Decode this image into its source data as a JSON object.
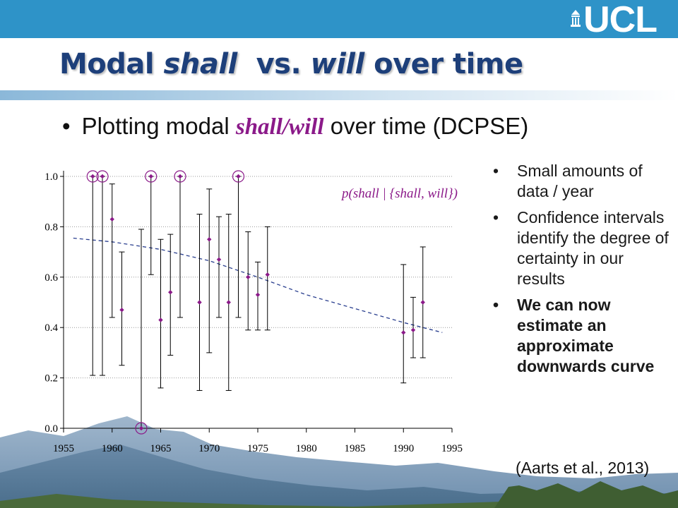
{
  "header": {
    "logo_text": "UCL",
    "title_part1": "Modal ",
    "title_em1": "shall",
    "title_part2": "  vs. ",
    "title_em2": "will",
    "title_part3": " over time"
  },
  "main_bullet": {
    "text_before": "Plotting modal ",
    "text_em": "shall/will",
    "text_after": " over time (DCPSE)"
  },
  "side_bullets": [
    {
      "text": "Small amounts of data / year",
      "bold": false
    },
    {
      "text": "Confidence intervals identify the degree of certainty in our results",
      "bold": false
    },
    {
      "text": "We can now estimate an approximate downwards curve",
      "bold": true
    }
  ],
  "citation": "(Aarts et al., 2013)",
  "colors": {
    "banner": "#2e93c8",
    "title": "#1d3f7a",
    "point": "#8b1a89",
    "curve": "#2a3f8f"
  },
  "chart_data": {
    "type": "scatter",
    "series_label": "p(shall | {shall, will})",
    "xlim": [
      1955,
      1995
    ],
    "ylim": [
      0,
      1
    ],
    "x_ticks": [
      "1955",
      "1960",
      "1965",
      "1970",
      "1975",
      "1980",
      "1985",
      "1990",
      "1995"
    ],
    "y_ticks": [
      "0.0",
      "0.2",
      "0.4",
      "0.6",
      "0.8",
      "1.0"
    ],
    "grid": "horizontal dotted",
    "points": [
      {
        "x": 1958,
        "y": 1.0,
        "lo": 0.21,
        "hi": 1.0,
        "circled": true
      },
      {
        "x": 1959,
        "y": 1.0,
        "lo": 0.21,
        "hi": 1.0,
        "circled": true
      },
      {
        "x": 1960,
        "y": 0.83,
        "lo": 0.44,
        "hi": 0.97,
        "circled": false
      },
      {
        "x": 1961,
        "y": 0.47,
        "lo": 0.25,
        "hi": 0.7,
        "circled": false
      },
      {
        "x": 1963,
        "y": 0.0,
        "lo": 0.0,
        "hi": 0.79,
        "circled": true
      },
      {
        "x": 1964,
        "y": 1.0,
        "lo": 0.61,
        "hi": 1.0,
        "circled": true
      },
      {
        "x": 1965,
        "y": 0.43,
        "lo": 0.16,
        "hi": 0.75,
        "circled": false
      },
      {
        "x": 1966,
        "y": 0.54,
        "lo": 0.29,
        "hi": 0.77,
        "circled": false
      },
      {
        "x": 1967,
        "y": 1.0,
        "lo": 0.44,
        "hi": 1.0,
        "circled": true
      },
      {
        "x": 1969,
        "y": 0.5,
        "lo": 0.15,
        "hi": 0.85,
        "circled": false
      },
      {
        "x": 1970,
        "y": 0.75,
        "lo": 0.3,
        "hi": 0.95,
        "circled": false
      },
      {
        "x": 1971,
        "y": 0.67,
        "lo": 0.44,
        "hi": 0.84,
        "circled": false
      },
      {
        "x": 1972,
        "y": 0.5,
        "lo": 0.15,
        "hi": 0.85,
        "circled": false
      },
      {
        "x": 1973,
        "y": 1.0,
        "lo": 0.44,
        "hi": 1.0,
        "circled": true
      },
      {
        "x": 1974,
        "y": 0.6,
        "lo": 0.39,
        "hi": 0.78,
        "circled": false
      },
      {
        "x": 1975,
        "y": 0.53,
        "lo": 0.39,
        "hi": 0.66,
        "circled": false
      },
      {
        "x": 1976,
        "y": 0.61,
        "lo": 0.39,
        "hi": 0.8,
        "circled": false
      },
      {
        "x": 1990,
        "y": 0.38,
        "lo": 0.18,
        "hi": 0.65,
        "circled": false
      },
      {
        "x": 1991,
        "y": 0.39,
        "lo": 0.28,
        "hi": 0.52,
        "circled": false
      },
      {
        "x": 1992,
        "y": 0.5,
        "lo": 0.28,
        "hi": 0.72,
        "circled": false
      }
    ],
    "trend": {
      "x": [
        1956,
        1960,
        1965,
        1970,
        1975,
        1980,
        1985,
        1990,
        1994
      ],
      "y": [
        0.755,
        0.74,
        0.71,
        0.665,
        0.6,
        0.53,
        0.475,
        0.42,
        0.38
      ]
    }
  }
}
